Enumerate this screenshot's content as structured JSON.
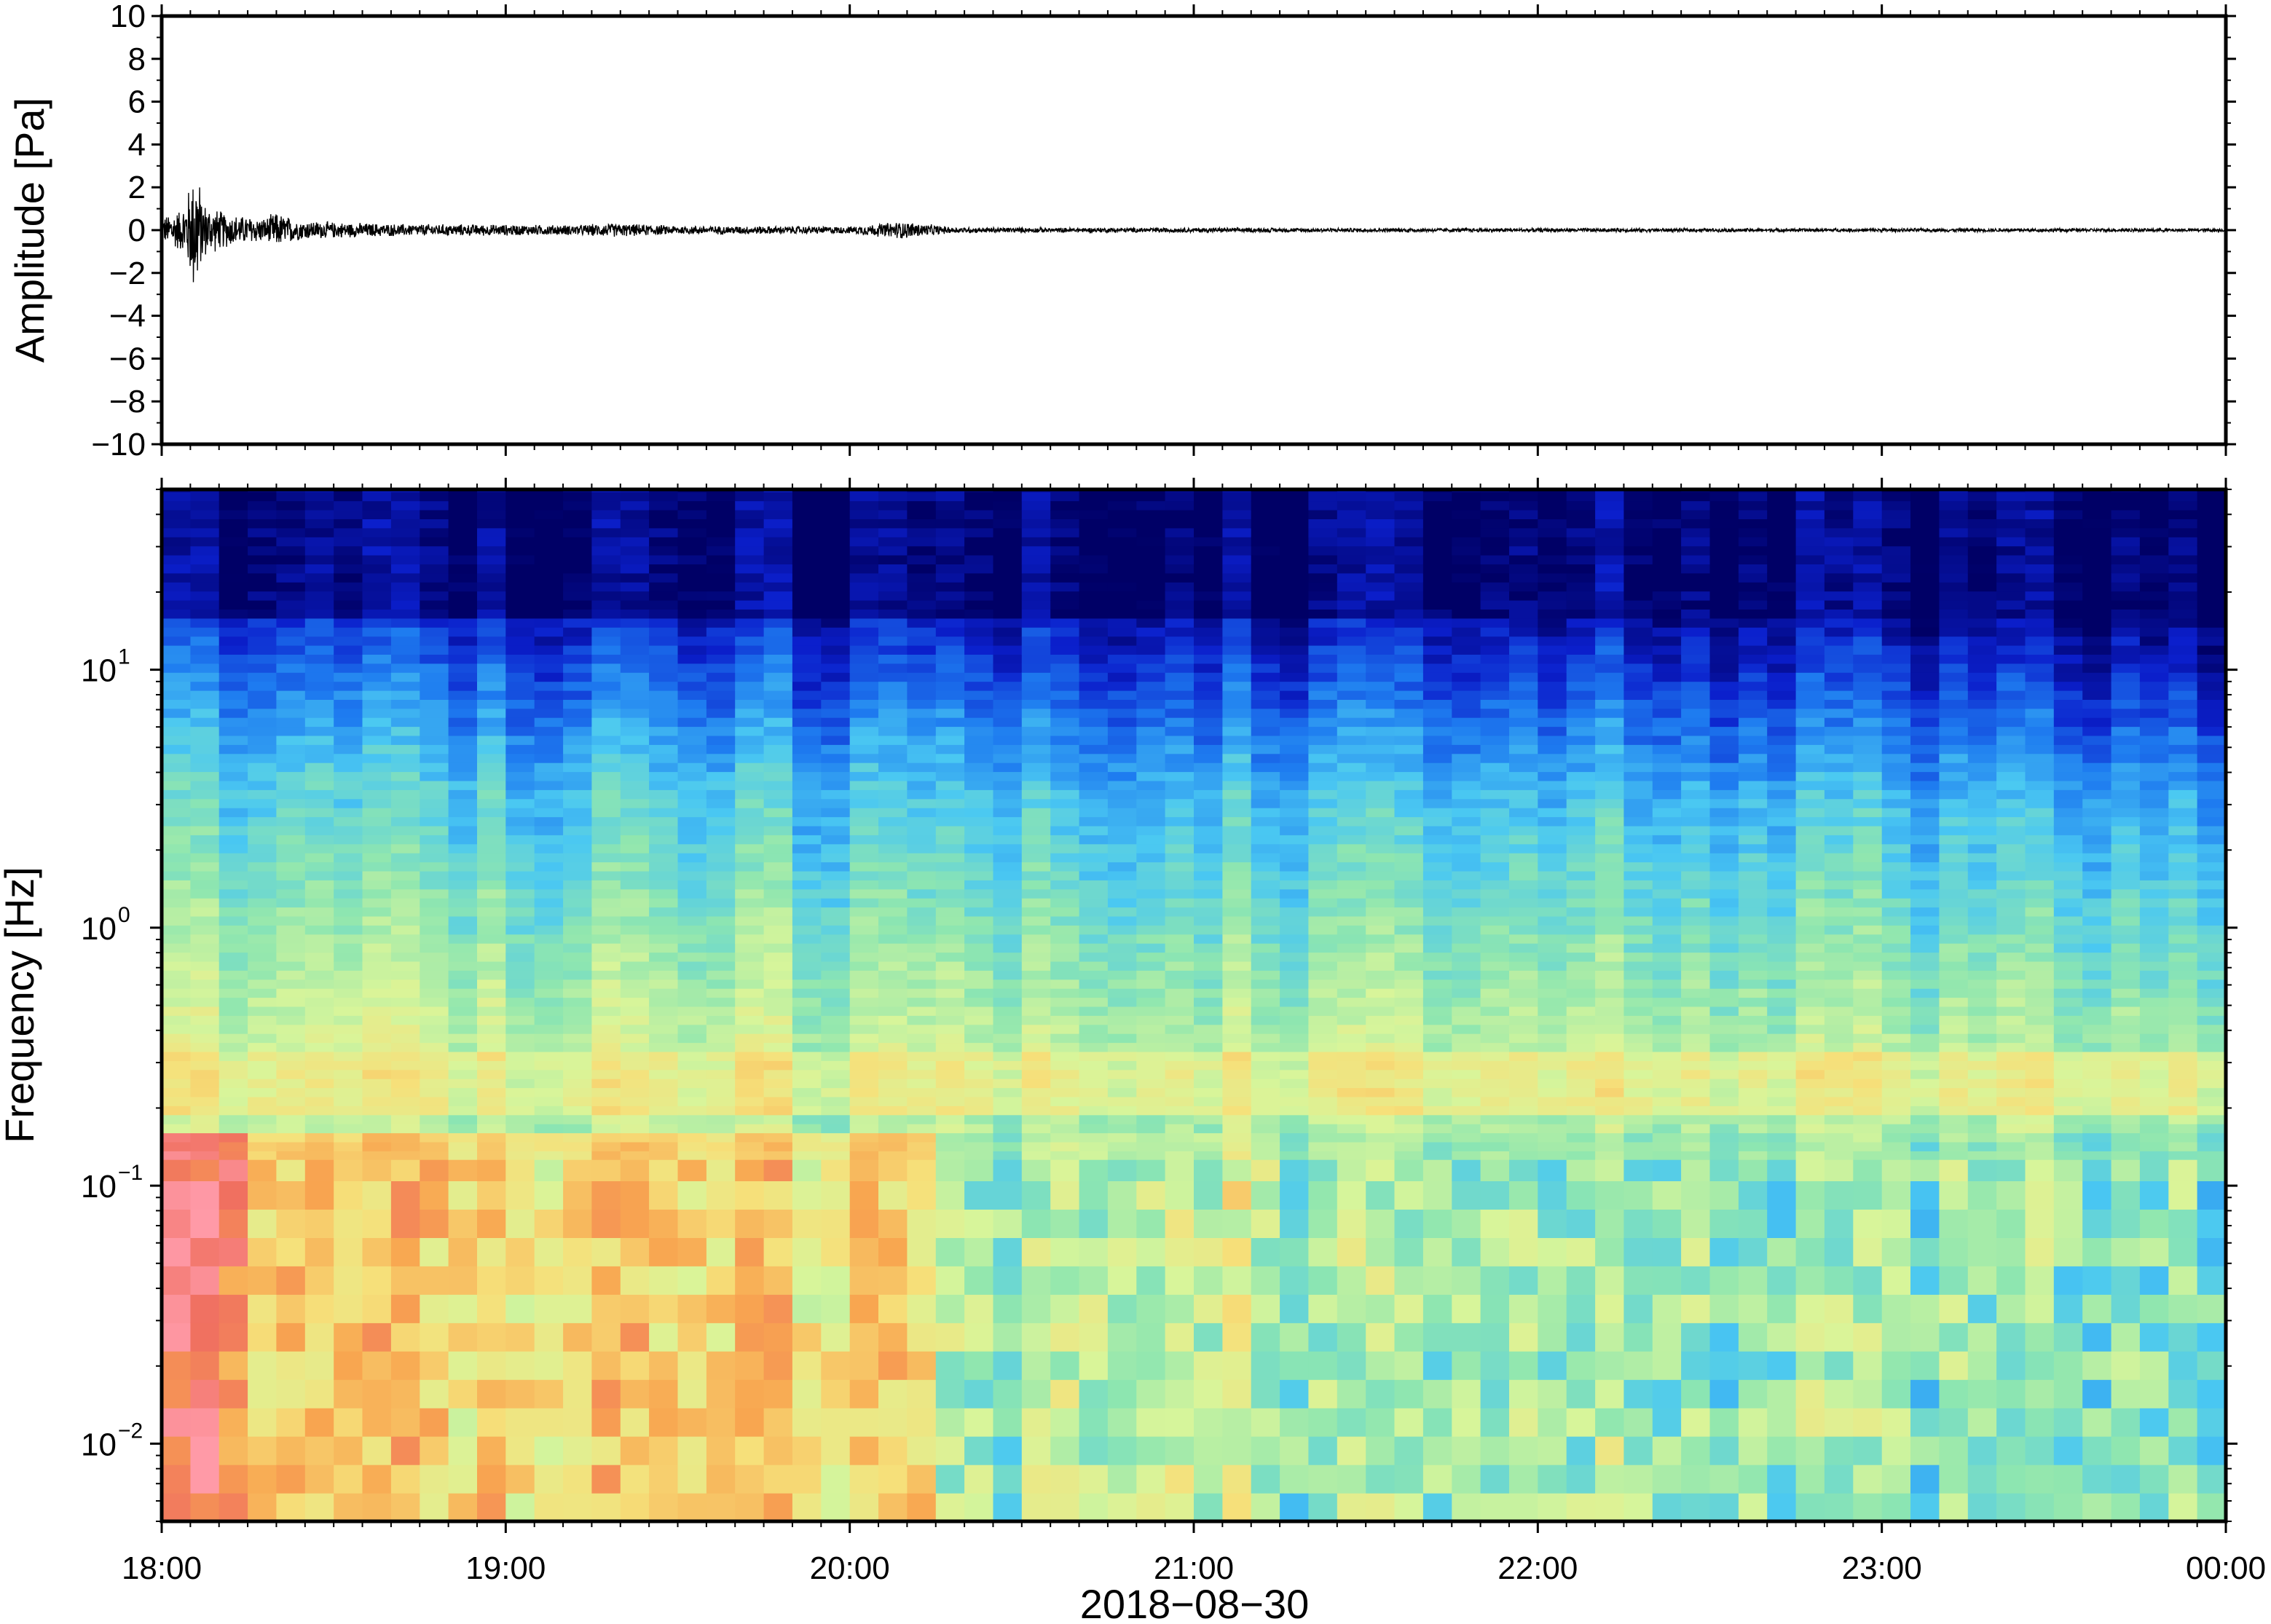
{
  "figure": {
    "date_label": "2018−08−30"
  },
  "chart_data": [
    {
      "type": "line",
      "ylabel": "Amplitude [Pa]",
      "ylim": [
        -10,
        10
      ],
      "y_ticks": [
        "10",
        "8",
        "6",
        "4",
        "2",
        "0",
        "−2",
        "−4",
        "−6",
        "−8",
        "−10"
      ],
      "y_tick_values": [
        10,
        8,
        6,
        4,
        2,
        0,
        -2,
        -4,
        -6,
        -8,
        -10
      ],
      "xlim": [
        "18:00",
        "00:00"
      ],
      "series": [
        {
          "values_description_free": true,
          "x_hours": [
            18.0,
            18.03,
            18.06,
            18.08,
            18.09,
            18.1,
            18.11,
            18.12,
            18.14,
            18.17,
            18.2,
            18.25,
            18.3,
            18.33,
            18.4,
            18.5,
            18.6,
            18.7,
            18.8,
            19.0,
            19.2,
            19.3,
            19.5,
            19.8,
            20.0,
            20.15,
            20.3,
            20.6,
            21.0,
            21.5,
            22.0,
            22.5,
            23.0,
            23.5,
            24.0
          ],
          "envelope": [
            0.6,
            0.9,
            1.1,
            2.2,
            3.0,
            3.7,
            2.4,
            1.5,
            1.2,
            1.0,
            0.8,
            0.7,
            0.6,
            0.9,
            0.5,
            0.4,
            0.35,
            0.3,
            0.3,
            0.28,
            0.25,
            0.35,
            0.22,
            0.2,
            0.18,
            0.45,
            0.15,
            0.12,
            0.12,
            0.1,
            0.1,
            0.09,
            0.09,
            0.09,
            0.08
          ]
        }
      ]
    },
    {
      "type": "heatmap",
      "ylabel": "Frequency [Hz]",
      "xlabel": "2018−08−30",
      "y_scale": "log",
      "ylim": [
        0.005,
        50
      ],
      "y_ticks": [
        {
          "base": "10",
          "exp": "1",
          "value": 10
        },
        {
          "base": "10",
          "exp": "0",
          "value": 1
        },
        {
          "base": "10",
          "exp": "−1",
          "value": 0.1
        },
        {
          "base": "10",
          "exp": "−2",
          "value": 0.01
        }
      ],
      "x_ticks": [
        "18:00",
        "19:00",
        "20:00",
        "21:00",
        "22:00",
        "23:00",
        "00:00"
      ],
      "colormap": [
        "#000066",
        "#0b1fcc",
        "#1e7cf0",
        "#4ac8f2",
        "#8ee6b0",
        "#d8f59a",
        "#f6e07a",
        "#f8a650",
        "#f07060",
        "#ff9aa8"
      ],
      "notes_none": true
    }
  ]
}
